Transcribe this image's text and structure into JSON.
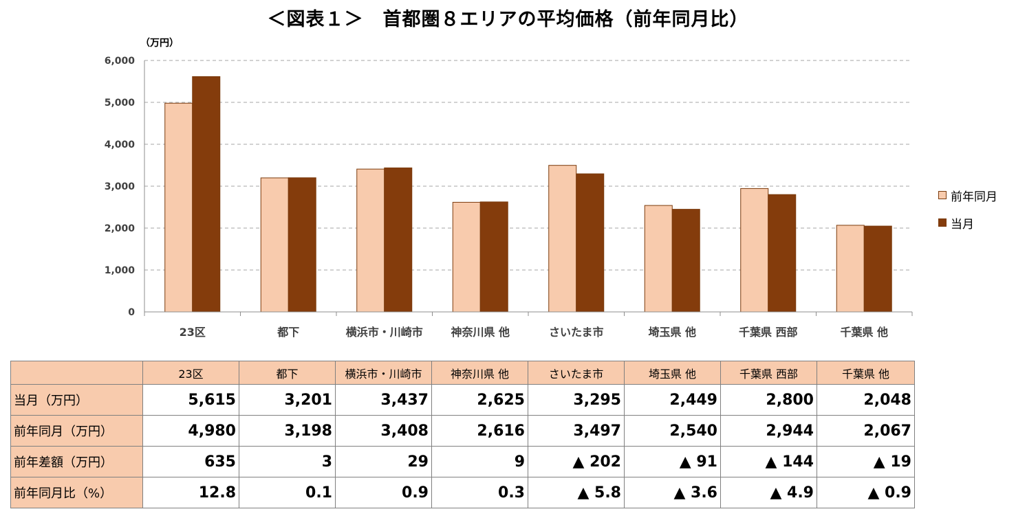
{
  "title": "＜図表１＞　首都圏８エリアの平均価格（前年同月比）",
  "chart_data": {
    "type": "bar",
    "title": "＜図表１＞　首都圏８エリアの平均価格（前年同月比）",
    "ylabel": "（万円）",
    "xlabel": "",
    "ylim": [
      0,
      6000
    ],
    "yticks": [
      0,
      1000,
      2000,
      3000,
      4000,
      5000,
      6000
    ],
    "ytick_labels": [
      "0",
      "1,000",
      "2,000",
      "3,000",
      "4,000",
      "5,000",
      "6,000"
    ],
    "grid": true,
    "legend_position": "right",
    "categories": [
      "23区",
      "都下",
      "横浜市・川崎市",
      "神奈川県 他",
      "さいたま市",
      "埼玉県 他",
      "千葉県 西部",
      "千葉県 他"
    ],
    "series": [
      {
        "name": "前年同月",
        "color": "#f8cbad",
        "values": [
          4980,
          3198,
          3408,
          2616,
          3497,
          2540,
          2944,
          2067
        ]
      },
      {
        "name": "当月",
        "color": "#843c0c",
        "values": [
          5615,
          3201,
          3437,
          2625,
          3295,
          2449,
          2800,
          2048
        ]
      }
    ]
  },
  "table": {
    "corner": "",
    "columns": [
      "23区",
      "都下",
      "横浜市・川崎市",
      "神奈川県 他",
      "さいたま市",
      "埼玉県 他",
      "千葉県 西部",
      "千葉県 他"
    ],
    "rows": [
      {
        "label": "当月（万円）",
        "values": [
          "5,615",
          "3,201",
          "3,437",
          "2,625",
          "3,295",
          "2,449",
          "2,800",
          "2,048"
        ]
      },
      {
        "label": "前年同月（万円）",
        "values": [
          "4,980",
          "3,198",
          "3,408",
          "2,616",
          "3,497",
          "2,540",
          "2,944",
          "2,067"
        ]
      },
      {
        "label": "前年差額（万円）",
        "values": [
          "635",
          "3",
          "29",
          "9",
          "▲ 202",
          "▲ 91",
          "▲ 144",
          "▲ 19"
        ]
      },
      {
        "label": "前年同月比（%）",
        "values": [
          "12.8",
          "0.1",
          "0.9",
          "0.3",
          "▲ 5.8",
          "▲ 3.6",
          "▲ 4.9",
          "▲ 0.9"
        ]
      }
    ]
  }
}
